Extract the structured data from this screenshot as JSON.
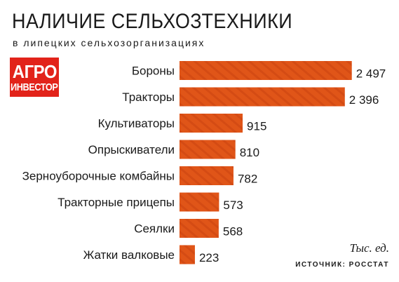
{
  "header": {
    "title": "НАЛИЧИЕ СЕЛЬХОЗТЕХНИКИ",
    "subtitle": "в липецких сельхозорганизациях"
  },
  "logo": {
    "line1": "АГРО",
    "line2": "ИНВЕСТОР"
  },
  "footer": {
    "units": "Тыс. ед.",
    "source": "ИСТОЧНИК: РОССТАТ"
  },
  "colors": {
    "bar": "#e05518",
    "bar_stripe": "#c94410",
    "logo": "#e2231a"
  },
  "chart_data": {
    "type": "bar",
    "orientation": "horizontal",
    "categories": [
      "Бороны",
      "Тракторы",
      "Культиваторы",
      "Опрыскиватели",
      "Зерноуборочные комбайны",
      "Тракторные прицепы",
      "Сеялки",
      "Жатки валковые"
    ],
    "values": [
      2497,
      2396,
      915,
      810,
      782,
      573,
      568,
      223
    ],
    "value_labels": [
      "2 497",
      "2 396",
      "915",
      "810",
      "782",
      "573",
      "568",
      "223"
    ],
    "xlim": [
      0,
      2500
    ],
    "grid": false,
    "legend": false
  }
}
